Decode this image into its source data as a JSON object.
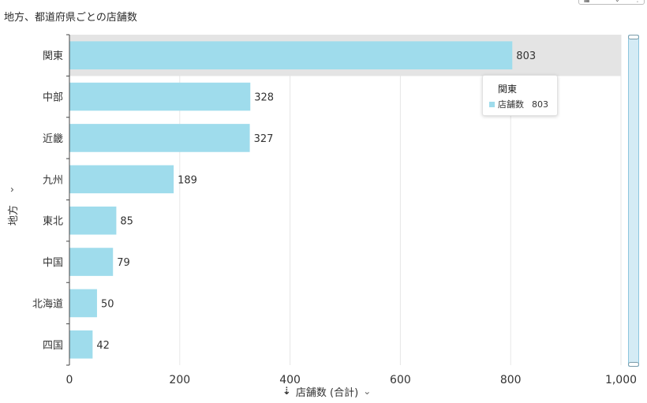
{
  "title": "地方、都道府県ごとの店舗数",
  "colors": {
    "bar": "#9fdcec",
    "highlight_band": "#e4e4e4",
    "gridline": "#e6e6e6",
    "axis": "#444444"
  },
  "chart_data": {
    "type": "bar",
    "orientation": "horizontal",
    "categories": [
      "関東",
      "中部",
      "近畿",
      "九州",
      "東北",
      "中国",
      "北海道",
      "四国"
    ],
    "values": [
      803,
      328,
      327,
      189,
      85,
      79,
      50,
      42
    ],
    "xlabel": "店舗数 (合計)",
    "ylabel": "地方",
    "xlim": [
      0,
      1000
    ],
    "xticks": [
      0,
      200,
      400,
      600,
      800,
      1000
    ],
    "xtick_labels": [
      "0",
      "200",
      "400",
      "600",
      "800",
      "1,000"
    ],
    "highlighted_category": "関東",
    "grid": true,
    "data_labels": true
  },
  "tooltip": {
    "title": "関東",
    "series": "店舗数",
    "value": "803"
  }
}
